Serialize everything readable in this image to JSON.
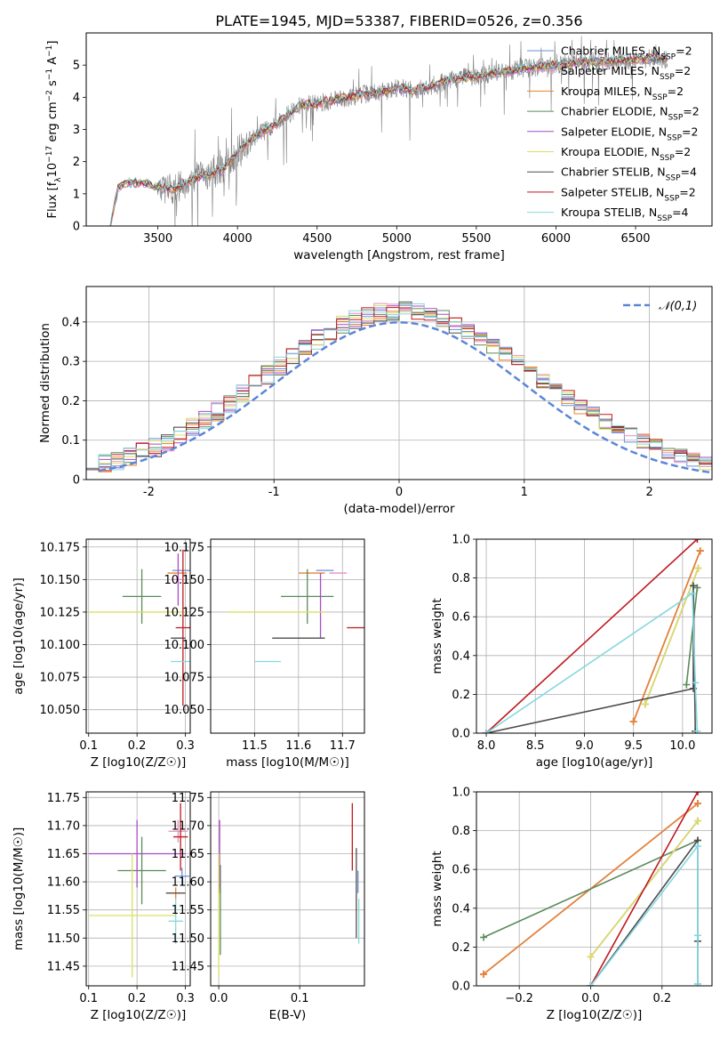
{
  "figure_title": "PLATE=1945, MJD=53387, FIBERID=0526, z=0.356",
  "models": [
    {
      "name": "Chabrier MILES",
      "nssp": "2",
      "color": "#6a8fd6"
    },
    {
      "name": "Salpeter MILES",
      "nssp": "2",
      "color": "#e58fbf"
    },
    {
      "name": "Kroupa MILES",
      "nssp": "2",
      "color": "#e8822c"
    },
    {
      "name": "Chabrier ELODIE",
      "nssp": "2",
      "color": "#5b8a5b"
    },
    {
      "name": "Salpeter ELODIE",
      "nssp": "2",
      "color": "#a64dc4"
    },
    {
      "name": "Kroupa ELODIE",
      "nssp": "2",
      "color": "#d9e060"
    },
    {
      "name": "Chabrier STELIB",
      "nssp": "4",
      "color": "#4d4d4d"
    },
    {
      "name": "Salpeter STELIB",
      "nssp": "2",
      "color": "#c0181f"
    },
    {
      "name": "Kroupa STELIB",
      "nssp": "4",
      "color": "#86d8e0"
    }
  ],
  "chart_data": [
    {
      "id": "spectrum",
      "type": "line",
      "xlabel": "wavelength [Angstrom, rest frame]",
      "ylabel_parts": [
        "Flux [f",
        "λ",
        "10",
        "−17",
        " erg cm",
        "−2",
        " s",
        "−1",
        " A",
        "−1",
        "]"
      ],
      "xlim": [
        3050,
        6980
      ],
      "ylim": [
        0,
        6
      ],
      "xticks": [
        3500,
        4000,
        4500,
        5000,
        5500,
        6000,
        6500
      ],
      "yticks": [
        0,
        1,
        2,
        3,
        4,
        5
      ],
      "grid": false,
      "legend_position": "top-right",
      "data_color": "#808080",
      "continuum": {
        "x": [
          3200,
          3250,
          3300,
          3400,
          3500,
          3600,
          3700,
          3800,
          3900,
          4000,
          4100,
          4200,
          4300,
          4400,
          4500,
          4600,
          4700,
          4800,
          4900,
          5000,
          5100,
          5200,
          5300,
          5400,
          5500,
          5600,
          5700,
          5800,
          5900,
          6000,
          6100,
          6200,
          6300,
          6400,
          6500,
          6600,
          6700
        ],
        "y": [
          0.0,
          1.2,
          1.35,
          1.35,
          1.2,
          1.15,
          1.4,
          1.6,
          1.7,
          2.3,
          2.75,
          3.05,
          3.4,
          3.75,
          3.8,
          3.9,
          4.0,
          4.1,
          4.15,
          4.3,
          4.2,
          4.3,
          4.5,
          4.6,
          4.65,
          4.75,
          4.8,
          4.9,
          4.95,
          5.0,
          5.05,
          5.1,
          5.1,
          5.15,
          5.15,
          5.2,
          5.2
        ]
      }
    },
    {
      "id": "residuals",
      "type": "histogram",
      "xlabel": "(data-model)/error",
      "ylabel": "Normed distribution",
      "xlim": [
        -2.5,
        2.5
      ],
      "ylim": [
        0,
        0.49
      ],
      "xticks": [
        -2,
        -1,
        0,
        1,
        2
      ],
      "yticks": [
        0.0,
        0.1,
        0.2,
        0.3,
        0.4
      ],
      "grid": true,
      "bin_width": 0.1,
      "reference_curve": {
        "label": "N(0,1)",
        "mean": 0,
        "sigma": 1,
        "color": "#5b86d6",
        "style": "dashed"
      },
      "legend_position": "top-right"
    },
    {
      "id": "age_vs_Z",
      "type": "errorbar",
      "xlabel": "Z [log10(Z/Z☉)]",
      "ylabel": "age [log10(age/yr)]",
      "xlim": [
        0.095,
        0.31
      ],
      "ylim": [
        10.032,
        10.181
      ],
      "xticks": [
        "0.1",
        "0.2",
        "0.3"
      ],
      "yticks": [
        "10.050",
        "10.075",
        "10.100",
        "10.125",
        "10.150",
        "10.175"
      ],
      "grid": true,
      "points": [
        {
          "model": 0,
          "x": 0.293,
          "xerr": 0.02,
          "y": 10.157,
          "yerr": 0.0
        },
        {
          "model": 1,
          "x": 0.283,
          "xerr": 0.01,
          "y": 10.15,
          "yerr": 0.0
        },
        {
          "model": 2,
          "x": 0.283,
          "xerr": 0.02,
          "y": 10.155,
          "yerr": 0.0
        },
        {
          "model": 3,
          "x": 0.21,
          "xerr": 0.04,
          "y": 10.137,
          "yerr": 0.021
        },
        {
          "model": 4,
          "x": 0.285,
          "xerr": 0.0,
          "y": 10.15,
          "yerr": 0.02
        },
        {
          "model": 5,
          "x": 0.2,
          "xerr": 0.1,
          "y": 10.125,
          "yerr": 0.0
        },
        {
          "model": 6,
          "x": 0.285,
          "xerr": 0.015,
          "y": 10.105,
          "yerr": 0.0
        },
        {
          "model": 7,
          "x": 0.295,
          "xerr": 0.015,
          "y": 10.113,
          "yerr": 0.06
        },
        {
          "model": 8,
          "x": 0.29,
          "xerr": 0.02,
          "y": 10.087,
          "yerr": 0.0
        }
      ]
    },
    {
      "id": "age_vs_mass",
      "type": "errorbar",
      "xlabel": "mass [log10(M/M☉)]",
      "ylabel": "",
      "xlim": [
        11.4,
        11.75
      ],
      "ylim": [
        10.032,
        10.181
      ],
      "xticks": [
        "11.5",
        "11.6",
        "11.7"
      ],
      "yticks": [
        "10.050",
        "10.075",
        "10.100",
        "10.125",
        "10.150",
        "10.175"
      ],
      "grid": true,
      "points": [
        {
          "model": 0,
          "x": 11.66,
          "xerr": 0.02,
          "y": 10.157,
          "yerr": 0.0
        },
        {
          "model": 1,
          "x": 11.69,
          "xerr": 0.02,
          "y": 10.155,
          "yerr": 0.0
        },
        {
          "model": 2,
          "x": 11.63,
          "xerr": 0.03,
          "y": 10.155,
          "yerr": 0.0
        },
        {
          "model": 3,
          "x": 11.62,
          "xerr": 0.06,
          "y": 10.137,
          "yerr": 0.021
        },
        {
          "model": 4,
          "x": 11.65,
          "xerr": 0.0,
          "y": 10.13,
          "yerr": 0.025
        },
        {
          "model": 5,
          "x": 11.55,
          "xerr": 0.11,
          "y": 10.125,
          "yerr": 0.0
        },
        {
          "model": 6,
          "x": 11.6,
          "xerr": 0.06,
          "y": 10.105,
          "yerr": 0.0
        },
        {
          "model": 7,
          "x": 11.74,
          "xerr": 0.03,
          "y": 10.113,
          "yerr": 0.0
        },
        {
          "model": 8,
          "x": 11.53,
          "xerr": 0.03,
          "y": 10.087,
          "yerr": 0.0
        }
      ]
    },
    {
      "id": "mass_weight_vs_age",
      "type": "line",
      "xlabel": "age [log10(age/yr)]",
      "ylabel": "mass weight",
      "xlim": [
        7.9,
        10.3
      ],
      "ylim": [
        0,
        1
      ],
      "xticks": [
        "8.0",
        "8.5",
        "9.0",
        "9.5",
        "10.0"
      ],
      "yticks": [
        "0.0",
        "0.2",
        "0.4",
        "0.6",
        "0.8",
        "1.0"
      ],
      "grid": true,
      "series": [
        {
          "model": 0,
          "x": [
            9.5,
            10.18
          ],
          "y": [
            0.06,
            0.94
          ]
        },
        {
          "model": 1,
          "x": [
            9.5,
            10.18
          ],
          "y": [
            0.06,
            0.94
          ]
        },
        {
          "model": 2,
          "x": [
            9.5,
            10.18
          ],
          "y": [
            0.06,
            0.94
          ]
        },
        {
          "model": 3,
          "x": [
            10.04,
            10.15
          ],
          "y": [
            0.25,
            0.75
          ]
        },
        {
          "model": 4,
          "x": [
            9.62,
            10.16
          ],
          "y": [
            0.15,
            0.85
          ]
        },
        {
          "model": 5,
          "x": [
            9.62,
            10.16
          ],
          "y": [
            0.15,
            0.85
          ]
        },
        {
          "model": 6,
          "x": [
            8.0,
            10.11,
            10.11,
            10.13
          ],
          "y": [
            0.0,
            0.23,
            0.76,
            0.01
          ]
        },
        {
          "model": 7,
          "x": [
            8.0,
            10.15
          ],
          "y": [
            0.0,
            1.0
          ]
        },
        {
          "model": 8,
          "x": [
            8.0,
            10.1,
            10.13,
            10.15
          ],
          "y": [
            0.0,
            0.72,
            0.26,
            0.01
          ]
        }
      ]
    },
    {
      "id": "mass_vs_Z",
      "type": "errorbar",
      "xlabel": "Z [log10(Z/Z☉)]",
      "ylabel": "mass [log10(M/M☉)]",
      "xlim": [
        0.095,
        0.31
      ],
      "ylim": [
        11.415,
        11.76
      ],
      "xticks": [
        "0.1",
        "0.2",
        "0.3"
      ],
      "yticks": [
        "11.45",
        "11.50",
        "11.55",
        "11.60",
        "11.65",
        "11.70",
        "11.75"
      ],
      "grid": true,
      "points": [
        {
          "model": 0,
          "x": 0.293,
          "xerr": 0.015,
          "y": 11.61,
          "yerr": 0.015
        },
        {
          "model": 1,
          "x": 0.285,
          "xerr": 0.02,
          "y": 11.69,
          "yerr": 0.02
        },
        {
          "model": 2,
          "x": 0.28,
          "xerr": 0.02,
          "y": 11.58,
          "yerr": 0.01
        },
        {
          "model": 3,
          "x": 0.21,
          "xerr": 0.05,
          "y": 11.62,
          "yerr": 0.06
        },
        {
          "model": 4,
          "x": 0.2,
          "xerr": 0.1,
          "y": 11.65,
          "yerr": 0.06
        },
        {
          "model": 5,
          "x": 0.19,
          "xerr": 0.09,
          "y": 11.54,
          "yerr": 0.11
        },
        {
          "model": 6,
          "x": 0.28,
          "xerr": 0.02,
          "y": 11.58,
          "yerr": 0.0
        },
        {
          "model": 7,
          "x": 0.29,
          "xerr": 0.015,
          "y": 11.68,
          "yerr": 0.06
        },
        {
          "model": 8,
          "x": 0.28,
          "xerr": 0.015,
          "y": 11.53,
          "yerr": 0.04
        }
      ]
    },
    {
      "id": "mass_vs_ebv",
      "type": "errorbar",
      "xlabel": "E(B-V)",
      "ylabel": "",
      "xlim": [
        -0.01,
        0.18
      ],
      "ylim": [
        11.415,
        11.76
      ],
      "xticks": [
        "0.0",
        "0.1"
      ],
      "yticks": [
        "11.45",
        "11.50",
        "11.55",
        "11.60",
        "11.65",
        "11.70",
        "11.75"
      ],
      "grid": true,
      "points": [
        {
          "model": 0,
          "x": 0.172,
          "xerr": 0.0,
          "y": 11.6,
          "yerr": 0.02
        },
        {
          "model": 1,
          "x": 0.001,
          "xerr": 0.0,
          "y": 11.69,
          "yerr": 0.02
        },
        {
          "model": 2,
          "x": 0.001,
          "xerr": 0.0,
          "y": 11.6,
          "yerr": 0.02
        },
        {
          "model": 3,
          "x": 0.002,
          "xerr": 0.0,
          "y": 11.55,
          "yerr": 0.08
        },
        {
          "model": 4,
          "x": 0.001,
          "xerr": 0.0,
          "y": 11.65,
          "yerr": 0.06
        },
        {
          "model": 5,
          "x": 0.0,
          "xerr": 0.0,
          "y": 11.54,
          "yerr": 0.11
        },
        {
          "model": 6,
          "x": 0.17,
          "xerr": 0.0,
          "y": 11.58,
          "yerr": 0.08
        },
        {
          "model": 7,
          "x": 0.165,
          "xerr": 0.0,
          "y": 11.68,
          "yerr": 0.06
        },
        {
          "model": 8,
          "x": 0.173,
          "xerr": 0.0,
          "y": 11.53,
          "yerr": 0.04
        }
      ]
    },
    {
      "id": "mass_weight_vs_Z",
      "type": "line",
      "xlabel": "Z [log10(Z/Z☉)]",
      "ylabel": "mass weight",
      "xlim": [
        -0.32,
        0.34
      ],
      "ylim": [
        0,
        1
      ],
      "xticks": [
        "−0.2",
        "0.0",
        "0.2"
      ],
      "yticks": [
        "0.0",
        "0.2",
        "0.4",
        "0.6",
        "0.8",
        "1.0"
      ],
      "grid": true,
      "series": [
        {
          "model": 0,
          "x": [
            -0.3,
            0.3
          ],
          "y": [
            0.06,
            0.94
          ]
        },
        {
          "model": 1,
          "x": [
            -0.3,
            0.3
          ],
          "y": [
            0.06,
            0.94
          ]
        },
        {
          "model": 2,
          "x": [
            -0.3,
            0.3
          ],
          "y": [
            0.06,
            0.94
          ]
        },
        {
          "model": 3,
          "x": [
            -0.3,
            0.3
          ],
          "y": [
            0.25,
            0.75
          ]
        },
        {
          "model": 4,
          "x": [
            0.0,
            0.3
          ],
          "y": [
            0.15,
            0.85
          ]
        },
        {
          "model": 5,
          "x": [
            0.0,
            0.3
          ],
          "y": [
            0.15,
            0.85
          ]
        },
        {
          "model": 6,
          "x": [
            0.0,
            0.3,
            0.3,
            0.3
          ],
          "y": [
            0.0,
            0.75,
            0.23,
            0.01
          ]
        },
        {
          "model": 7,
          "x": [
            0.0,
            0.3
          ],
          "y": [
            0.0,
            1.0
          ]
        },
        {
          "model": 8,
          "x": [
            0.0,
            0.3,
            0.3,
            0.3
          ],
          "y": [
            0.0,
            0.72,
            0.26,
            0.01
          ]
        }
      ]
    }
  ]
}
